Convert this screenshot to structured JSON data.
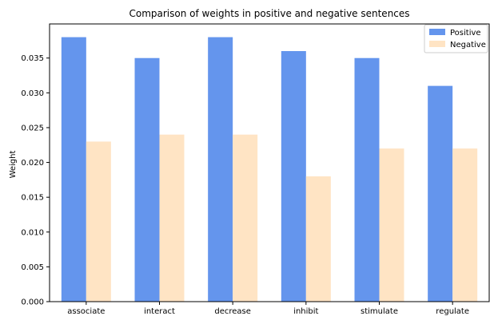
{
  "chart_data": {
    "type": "bar",
    "title": "Comparison of weights in positive and negative sentences",
    "xlabel": "",
    "ylabel": "Weight",
    "categories": [
      "associate",
      "interact",
      "decrease",
      "inhibit",
      "stimulate",
      "regulate"
    ],
    "series": [
      {
        "name": "Positive",
        "values": [
          0.038,
          0.035,
          0.038,
          0.036,
          0.035,
          0.031
        ],
        "color": "#6495ED"
      },
      {
        "name": "Negative",
        "values": [
          0.023,
          0.024,
          0.024,
          0.018,
          0.022,
          0.022
        ],
        "color": "#FFE4C4"
      }
    ],
    "ylim": [
      0,
      0.0399
    ],
    "yticks": [
      "0.000",
      "0.005",
      "0.010",
      "0.015",
      "0.020",
      "0.025",
      "0.030",
      "0.035"
    ],
    "grid": false,
    "legend_position": "top-right"
  }
}
